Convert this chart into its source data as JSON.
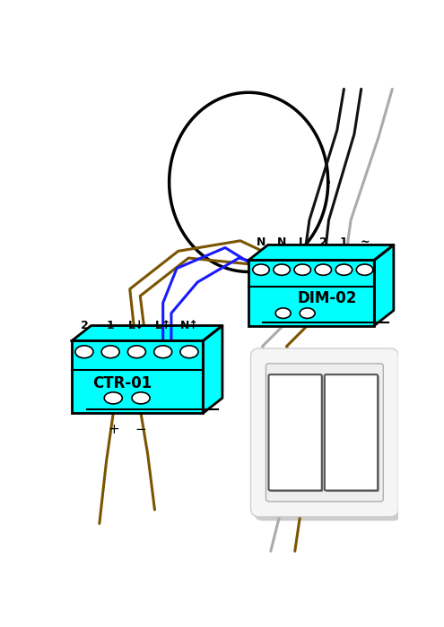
{
  "bg_color": "#ffffff",
  "ctr01": {
    "label": "CTR-01",
    "face_color": "#00ffff",
    "terminals": [
      "2",
      "1",
      "L↓",
      "L↑",
      "N↑"
    ]
  },
  "dim02": {
    "label": "DIM-02",
    "face_color": "#00ffff",
    "terminals": [
      "N",
      "N",
      "L",
      "2",
      "1",
      "∼"
    ]
  },
  "wire_color_blue": "#1a1aff",
  "wire_color_brown": "#7a5500",
  "wire_color_black": "#111111",
  "wire_color_gray": "#aaaaaa",
  "lw_wire": 2.2
}
